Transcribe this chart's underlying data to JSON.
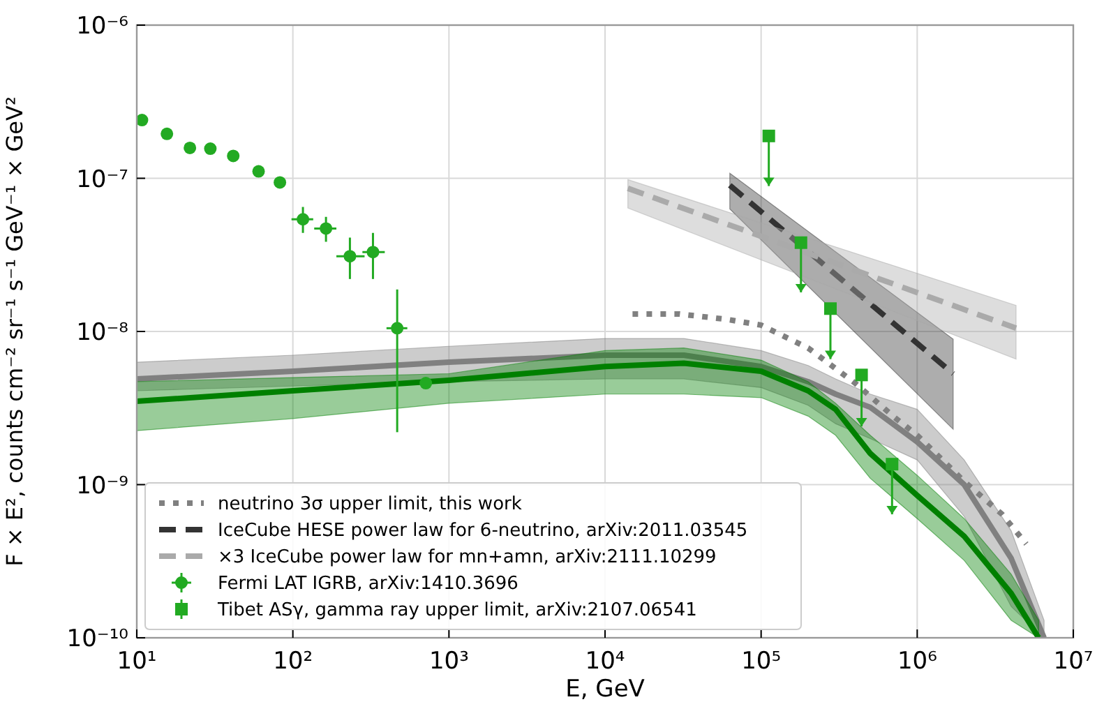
{
  "chart_data": {
    "type": "line",
    "xlabel": "E, GeV",
    "ylabel": "F × E², counts cm⁻² sr⁻¹ s⁻¹ GeV⁻¹ × GeV²",
    "log": "xy",
    "grid": true,
    "legend": "bottom left",
    "xlim": [
      10,
      10000000
    ],
    "ylim": [
      1e-10,
      1e-06
    ],
    "xticks": [
      {
        "value": 10,
        "label": "10¹"
      },
      {
        "value": 100,
        "label": "10²"
      },
      {
        "value": 1000,
        "label": "10³"
      },
      {
        "value": 10000,
        "label": "10⁴"
      },
      {
        "value": 100000,
        "label": "10⁵"
      },
      {
        "value": 1000000,
        "label": "10⁶"
      },
      {
        "value": 10000000,
        "label": "10⁷"
      }
    ],
    "yticks": [
      {
        "value": 1e-10,
        "label": "10⁻¹⁰"
      },
      {
        "value": 1e-09,
        "label": "10⁻⁹"
      },
      {
        "value": 1e-08,
        "label": "10⁻⁸"
      },
      {
        "value": 1e-07,
        "label": "10⁻⁷"
      },
      {
        "value": 1e-06,
        "label": "10⁻⁶"
      }
    ],
    "series": [
      {
        "color": "#808080",
        "line_style": "solid",
        "x": [
          10,
          100,
          1000,
          10000,
          32000,
          100000,
          200000,
          300000,
          500000,
          1000000,
          2000000,
          4000000,
          6500000
        ],
        "values": [
          4.9e-09,
          5.5e-09,
          6.3e-09,
          7e-09,
          7e-09,
          5.9e-09,
          4.7e-09,
          3.9e-09,
          3.2e-09,
          1.9e-09,
          1e-09,
          3.3e-10,
          1e-10
        ],
        "upper": [
          6.3e-09,
          7e-09,
          8e-09,
          9e-09,
          9e-09,
          7.5e-09,
          6e-09,
          4.9e-09,
          3.9e-09,
          3.1e-09,
          1.45e-09,
          5e-10,
          1.3e-10
        ],
        "lower": [
          4.1e-09,
          4.4e-09,
          4.7e-09,
          4.9e-09,
          4.9e-09,
          4.3e-09,
          3.3e-09,
          2.5e-09,
          2e-09,
          1.45e-09,
          6.2e-10,
          1.6e-10,
          1e-10
        ]
      },
      {
        "color": "#008000",
        "line_style": "solid",
        "x": [
          10,
          100,
          1000,
          10000,
          32000,
          100000,
          200000,
          300000,
          500000,
          1000000,
          2000000,
          4000000,
          6000000
        ],
        "values": [
          3.5e-09,
          4.1e-09,
          4.8e-09,
          5.9e-09,
          6.2e-09,
          5.5e-09,
          4.1e-09,
          3.1e-09,
          1.6e-09,
          8.5e-10,
          4.6e-10,
          1.95e-10,
          1e-10
        ],
        "upper": [
          4.7e-09,
          5e-09,
          5.3e-09,
          7.5e-09,
          7.8e-09,
          6.5e-09,
          4.7e-09,
          3.4e-09,
          2.1e-09,
          1.15e-09,
          6e-10,
          2.6e-10,
          1.3e-10
        ],
        "lower": [
          2.25e-09,
          2.7e-09,
          3.4e-09,
          3.9e-09,
          3.9e-09,
          3.7e-09,
          2.8e-09,
          2.1e-09,
          1.1e-09,
          6e-10,
          3.2e-10,
          1.3e-10,
          1e-10
        ]
      },
      {
        "name": "neutrino 3σ upper limit, this work",
        "color": "#808080",
        "line_style": "dotted",
        "x": [
          15000,
          30000,
          60000,
          100000,
          200000,
          400000,
          700000,
          1000000,
          2000000,
          3500000,
          5000000
        ],
        "values": [
          1.3e-08,
          1.3e-08,
          1.2e-08,
          1.1e-08,
          7.8e-09,
          4.6e-09,
          2.8e-09,
          2.1e-09,
          1.05e-09,
          6.4e-10,
          4.1e-10
        ]
      },
      {
        "name": "IceCube HESE power law for 6-neutrino, arXiv:2011.03545",
        "color": "#333333",
        "line_style": "dashed",
        "x": [
          63000,
          1700000
        ],
        "values": [
          9e-08,
          5.3e-09
        ],
        "upper": [
          1.08e-07,
          8.9e-09
        ],
        "lower": [
          6.3e-08,
          2.3e-09
        ]
      },
      {
        "name": "×3 IceCube power law for mn+amn, arXiv:2111.10299",
        "color": "#aaaaaa",
        "line_style": "dashed",
        "x": [
          14000,
          4300000
        ],
        "values": [
          8.6e-08,
          1.05e-08
        ],
        "upper": [
          9.8e-08,
          1.48e-08
        ],
        "lower": [
          6.4e-08,
          6.6e-09
        ]
      },
      {
        "type": "scatter",
        "name": "Fermi LAT IGRB, arXiv:1410.3696",
        "color": "#22aa22",
        "marker": "circle",
        "x": [
          10.8,
          15.6,
          21.9,
          29.6,
          41.5,
          60.3,
          82.6,
          116,
          163,
          232,
          326,
          466,
          711
        ],
        "values": [
          2.4e-07,
          1.95e-07,
          1.58e-07,
          1.56e-07,
          1.4e-07,
          1.11e-07,
          9.4e-08,
          5.4e-08,
          4.7e-08,
          3.1e-08,
          3.3e-08,
          1.05e-08,
          4.6e-09
        ],
        "errors": [
          null,
          null,
          null,
          null,
          null,
          null,
          null,
          [
            4.4e-08,
            6.5e-08
          ],
          [
            3.85e-08,
            5.6e-08
          ],
          [
            2.2e-08,
            4.1e-08
          ],
          [
            2.2e-08,
            4.4e-08
          ],
          [
            2.2e-09,
            1.88e-08
          ],
          null
        ],
        "xerrors": [
          null,
          null,
          null,
          null,
          null,
          null,
          null,
          [
            98,
            135
          ],
          [
            137,
            190
          ],
          [
            190,
            288
          ],
          [
            279,
            388
          ],
          [
            398,
            541
          ],
          null
        ]
      },
      {
        "type": "scatter",
        "name": "Tibet ASγ, gamma ray upper limit,  arXiv:2107.06541",
        "color": "#22aa22",
        "marker": "square",
        "x": [
          112000,
          180000,
          278000,
          440000,
          690000
        ],
        "values": [
          1.89e-07,
          3.8e-08,
          1.41e-08,
          5.2e-09,
          1.36e-09
        ],
        "errors": [
          [
            8.9e-08,
            1.89e-07
          ],
          [
            1.8e-08,
            3.8e-08
          ],
          [
            6.6e-09,
            1.41e-08
          ],
          [
            2.4e-09,
            5.2e-09
          ],
          [
            6.4e-10,
            1.36e-09
          ]
        ]
      }
    ]
  }
}
